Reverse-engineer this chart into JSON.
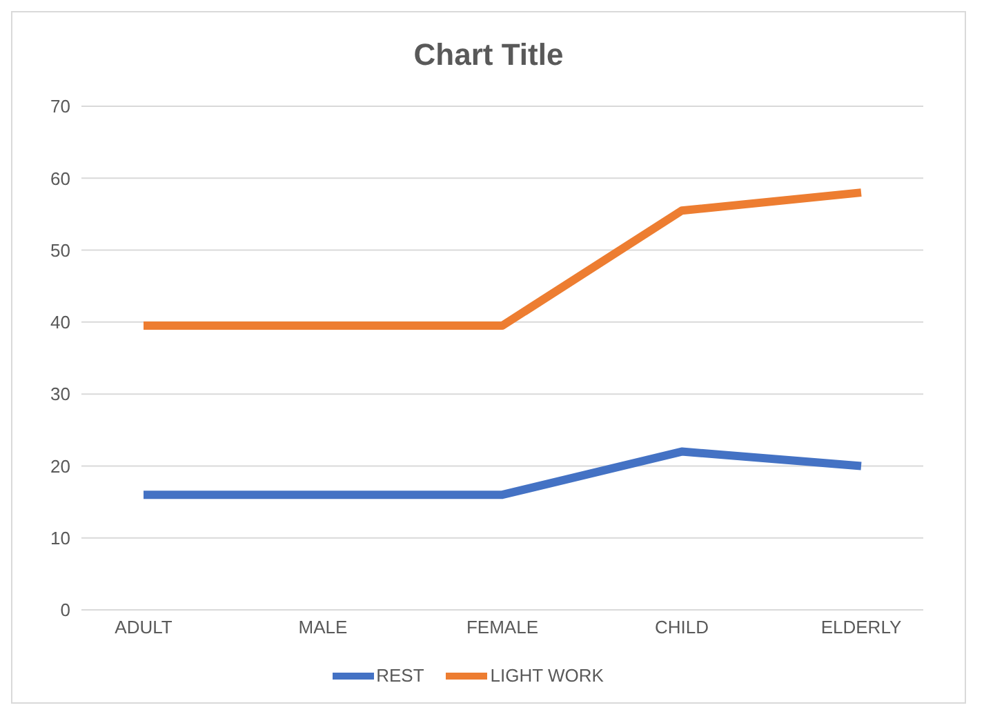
{
  "chart_data": {
    "type": "line",
    "title": "Chart Title",
    "categories": [
      "ADULT",
      "MALE",
      "FEMALE",
      "CHILD",
      "ELDERLY"
    ],
    "series": [
      {
        "name": "REST",
        "color": "#4472c4",
        "values": [
          16,
          16,
          16,
          22,
          20
        ]
      },
      {
        "name": "LIGHT WORK",
        "color": "#ed7d31",
        "values": [
          39.5,
          39.5,
          39.5,
          55.5,
          58
        ]
      }
    ],
    "ylim": [
      0,
      70
    ],
    "yticks": [
      0,
      10,
      20,
      30,
      40,
      50,
      60,
      70
    ],
    "grid": "y",
    "legend": "bottom",
    "marker": "none",
    "line_style": "solid"
  }
}
